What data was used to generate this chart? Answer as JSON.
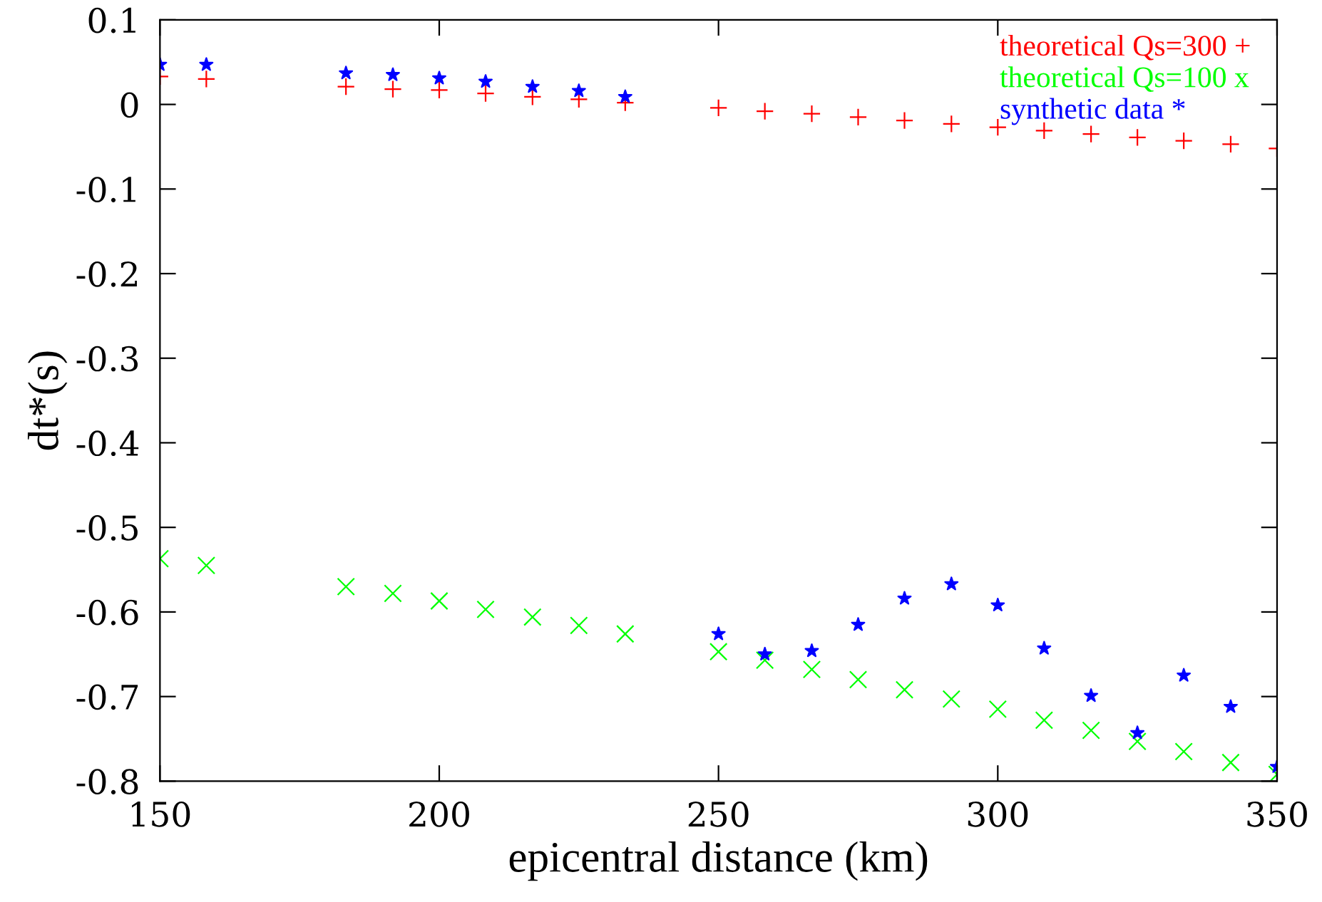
{
  "chart_data": {
    "type": "scatter",
    "xlabel": "epicentral distance (km)",
    "ylabel": "dt*(s)",
    "x": [
      150,
      158.3,
      183.3,
      191.7,
      200,
      208.3,
      216.7,
      225,
      233.3,
      250,
      258.3,
      266.7,
      275,
      283.3,
      291.7,
      300,
      308.3,
      316.7,
      325,
      333.3,
      341.7,
      350
    ],
    "series": [
      {
        "name": "theoretical Qs=300 +",
        "color": "#ff0000",
        "marker": "plus",
        "values": [
          0.033,
          0.03,
          0.021,
          0.018,
          0.017,
          0.013,
          0.009,
          0.006,
          0.002,
          -0.004,
          -0.008,
          -0.011,
          -0.015,
          -0.019,
          -0.023,
          -0.027,
          -0.031,
          -0.035,
          -0.039,
          -0.043,
          -0.047,
          -0.052
        ]
      },
      {
        "name": "theoretical Qs=100 x",
        "color": "#00ff00",
        "marker": "cross",
        "values": [
          -0.537,
          -0.545,
          -0.57,
          -0.578,
          -0.587,
          -0.597,
          -0.606,
          -0.616,
          -0.626,
          -0.647,
          -0.657,
          -0.668,
          -0.68,
          -0.692,
          -0.703,
          -0.715,
          -0.728,
          -0.74,
          -0.753,
          -0.765,
          -0.778,
          -0.792
        ]
      },
      {
        "name": "synthetic data *",
        "color": "#0000ff",
        "marker": "star",
        "values": [
          0.047,
          0.047,
          0.037,
          0.035,
          0.031,
          0.027,
          0.021,
          0.016,
          0.009,
          -0.626,
          -0.65,
          -0.646,
          -0.615,
          -0.584,
          -0.567,
          -0.592,
          -0.643,
          -0.699,
          -0.743,
          -0.675,
          -0.712,
          -0.783
        ]
      }
    ],
    "xlim": [
      150,
      350
    ],
    "ylim": [
      -0.8,
      0.1
    ],
    "xticks": [
      150,
      200,
      250,
      300,
      350
    ],
    "yticks": [
      {
        "value": 0.1,
        "label": "0.1"
      },
      0,
      {
        "value": -0.1,
        "label": "-0.1"
      },
      {
        "value": -0.2,
        "label": "-0.2"
      },
      {
        "value": -0.3,
        "label": "-0.3"
      },
      {
        "value": -0.4,
        "label": "-0.4"
      },
      {
        "value": -0.5,
        "label": "-0.5"
      },
      {
        "value": -0.6,
        "label": "-0.6"
      },
      {
        "value": -0.7,
        "label": "-0.7"
      },
      {
        "value": -0.8,
        "label": "-0.8"
      }
    ],
    "grid": false,
    "legend": "top right"
  }
}
